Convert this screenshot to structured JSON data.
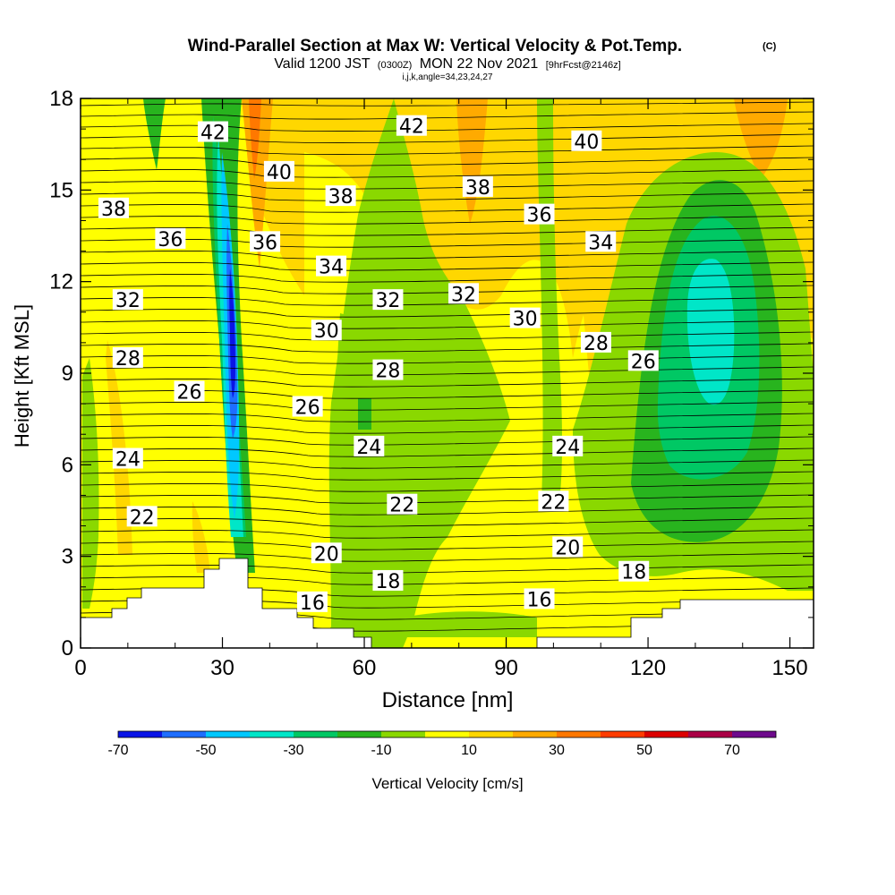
{
  "chart_data": {
    "type": "heatmap",
    "title": "Wind-Parallel Section at Max W: Vertical Velocity & Pot.Temp.",
    "title_mark": "(C)",
    "subtitle": {
      "valid": "Valid 1200 JST",
      "utc": "(0300Z)",
      "date": "MON 22 Nov 2021",
      "forecast": "[9hrFcst@2146z]"
    },
    "params": "i,j,k,angle=34,23,24,27",
    "xlabel": "Distance [nm]",
    "ylabel": "Height [Kft MSL]",
    "xlim": [
      0,
      155
    ],
    "ylim": [
      0,
      18
    ],
    "x_ticks": [
      0,
      30,
      60,
      90,
      120,
      150
    ],
    "y_ticks": [
      0,
      3,
      6,
      9,
      12,
      15,
      18
    ],
    "colorbar": {
      "label": "Vertical Velocity [cm/s]",
      "tick_labels": [
        "-70",
        "-50",
        "-30",
        "-10",
        "10",
        "30",
        "50",
        "70"
      ],
      "colors": [
        "#0a14e6",
        "#1e6eff",
        "#00c8ff",
        "#00e6c8",
        "#00c864",
        "#28b41e",
        "#8ad800",
        "#ffff00",
        "#ffd700",
        "#ffaa00",
        "#ff7800",
        "#ff3c00",
        "#dc0000",
        "#aa0046",
        "#6e0a8c"
      ]
    },
    "contour_labels": [
      {
        "text": "42",
        "x": 28,
        "y": 16.9
      },
      {
        "text": "42",
        "x": 70,
        "y": 17.1
      },
      {
        "text": "40",
        "x": 42,
        "y": 15.6
      },
      {
        "text": "40",
        "x": 107,
        "y": 16.6
      },
      {
        "text": "38",
        "x": 7,
        "y": 14.4
      },
      {
        "text": "38",
        "x": 55,
        "y": 14.8
      },
      {
        "text": "38",
        "x": 84,
        "y": 15.1
      },
      {
        "text": "36",
        "x": 19,
        "y": 13.4
      },
      {
        "text": "36",
        "x": 39,
        "y": 13.3
      },
      {
        "text": "36",
        "x": 97,
        "y": 14.2
      },
      {
        "text": "34",
        "x": 53,
        "y": 12.5
      },
      {
        "text": "34",
        "x": 110,
        "y": 13.3
      },
      {
        "text": "32",
        "x": 10,
        "y": 11.4
      },
      {
        "text": "32",
        "x": 65,
        "y": 11.4
      },
      {
        "text": "32",
        "x": 81,
        "y": 11.6
      },
      {
        "text": "30",
        "x": 52,
        "y": 10.4
      },
      {
        "text": "30",
        "x": 94,
        "y": 10.8
      },
      {
        "text": "28",
        "x": 10,
        "y": 9.5
      },
      {
        "text": "28",
        "x": 65,
        "y": 9.1
      },
      {
        "text": "28",
        "x": 109,
        "y": 10.0
      },
      {
        "text": "26",
        "x": 23,
        "y": 8.4
      },
      {
        "text": "26",
        "x": 48,
        "y": 7.9
      },
      {
        "text": "26",
        "x": 119,
        "y": 9.4
      },
      {
        "text": "24",
        "x": 10,
        "y": 6.2
      },
      {
        "text": "24",
        "x": 61,
        "y": 6.6
      },
      {
        "text": "24",
        "x": 103,
        "y": 6.6
      },
      {
        "text": "22",
        "x": 13,
        "y": 4.3
      },
      {
        "text": "22",
        "x": 68,
        "y": 4.7
      },
      {
        "text": "22",
        "x": 100,
        "y": 4.8
      },
      {
        "text": "20",
        "x": 52,
        "y": 3.1
      },
      {
        "text": "20",
        "x": 103,
        "y": 3.3
      },
      {
        "text": "18",
        "x": 65,
        "y": 2.2
      },
      {
        "text": "18",
        "x": 117,
        "y": 2.5
      },
      {
        "text": "16",
        "x": 49,
        "y": 1.5
      },
      {
        "text": "16",
        "x": 97,
        "y": 1.6
      }
    ]
  }
}
